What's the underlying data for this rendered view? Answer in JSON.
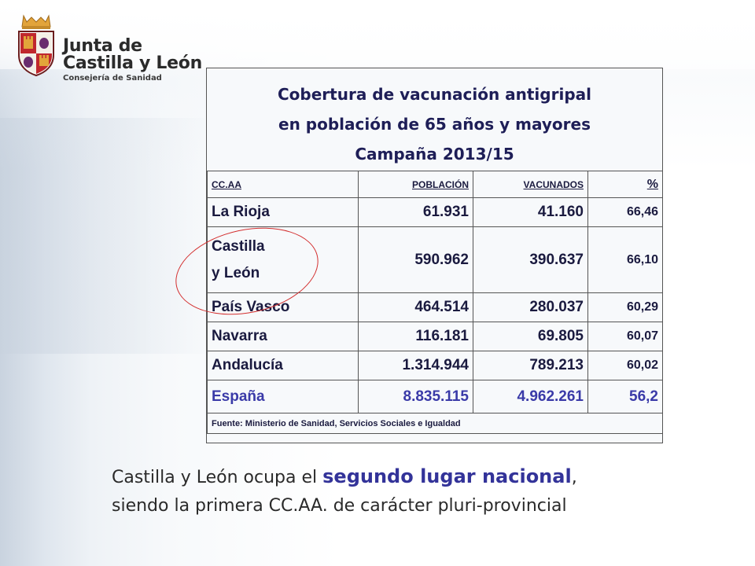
{
  "logo": {
    "line1": "Junta de",
    "line2": "Castilla y León",
    "line3": "Consejería de Sanidad",
    "colors": {
      "crest_red": "#c0272d",
      "crest_purple": "#6a2c6e",
      "crest_gold": "#e2a43a"
    }
  },
  "table": {
    "title_lines": [
      "Cobertura de vacunación antigripal",
      "en población de 65 años y mayores",
      "Campaña 2013/15"
    ],
    "headers": [
      "CC.AA",
      "POBLACIÓN",
      "VACUNADOS",
      "%"
    ],
    "rows": [
      {
        "region": "La Rioja",
        "poblacion": "61.931",
        "vacunados": "41.160",
        "pct": "66,46"
      },
      {
        "region_lines": [
          "Castilla",
          "y León"
        ],
        "poblacion": "590.962",
        "vacunados": "390.637",
        "pct": "66,10",
        "highlighted": true
      },
      {
        "region": "País Vasco",
        "poblacion": "464.514",
        "vacunados": "280.037",
        "pct": "60,29"
      },
      {
        "region": "Navarra",
        "poblacion": "116.181",
        "vacunados": "69.805",
        "pct": "60,07"
      },
      {
        "region": "Andalucía",
        "poblacion": "1.314.944",
        "vacunados": "789.213",
        "pct": "60,02"
      },
      {
        "region": "España",
        "poblacion": "8.835.115",
        "vacunados": "4.962.261",
        "pct": "56,2"
      }
    ],
    "source": "Fuente: Ministerio de Sanidad, Servicios Sociales e Igualdad",
    "colors": {
      "title": "#1e1e57",
      "spain_row": "#3a3aa8",
      "highlight_circle": "#d32f2f"
    }
  },
  "caption": {
    "part1": "Castilla y León ocupa el ",
    "emphasis": "segundo lugar nacional",
    "part2": ",",
    "line2": "siendo la primera CC.AA. de carácter pluri-provincial",
    "emphasis_color": "#333399"
  }
}
